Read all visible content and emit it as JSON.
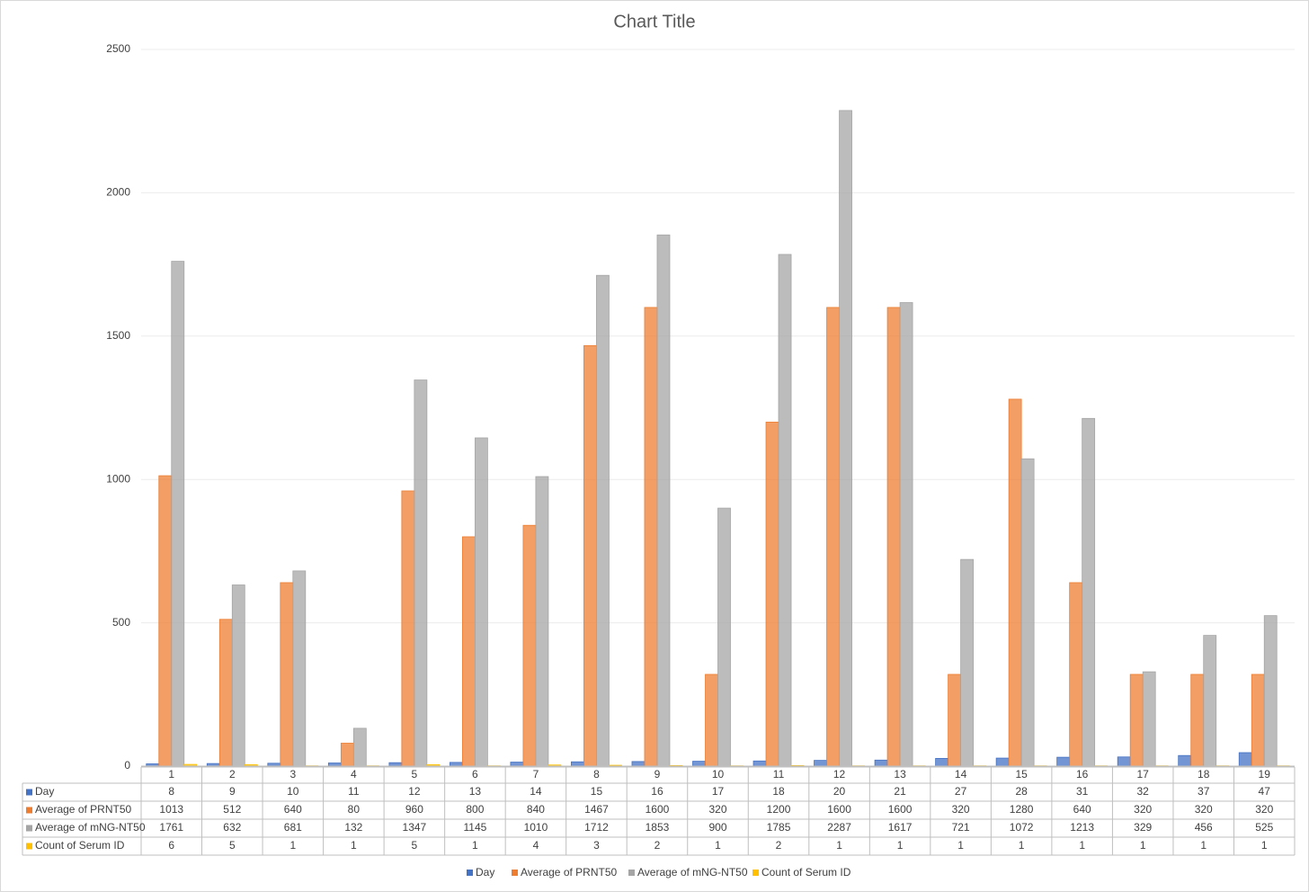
{
  "chart_data": {
    "type": "bar",
    "title": "Chart Title",
    "categories": [
      "1",
      "2",
      "3",
      "4",
      "5",
      "6",
      "7",
      "8",
      "9",
      "10",
      "11",
      "12",
      "13",
      "14",
      "15",
      "16",
      "17",
      "18",
      "19"
    ],
    "series": [
      {
        "name": "Day",
        "color": "#4472c4",
        "values": [
          8,
          9,
          10,
          11,
          12,
          13,
          14,
          15,
          16,
          17,
          18,
          20,
          21,
          27,
          28,
          31,
          32,
          37,
          47
        ]
      },
      {
        "name": "Average of PRNT50",
        "color": "#ed7d31",
        "values": [
          1013,
          512,
          640,
          80,
          960,
          800,
          840,
          1467,
          1600,
          320,
          1200,
          1600,
          1600,
          320,
          1280,
          640,
          320,
          320,
          320
        ]
      },
      {
        "name": "Average of mNG-NT50",
        "color": "#a5a5a5",
        "values": [
          1761,
          632,
          681,
          132,
          1347,
          1145,
          1010,
          1712,
          1853,
          900,
          1785,
          2287,
          1617,
          721,
          1072,
          1213,
          329,
          456,
          525
        ]
      },
      {
        "name": "Count of Serum ID",
        "color": "#ffc000",
        "values": [
          6,
          5,
          1,
          1,
          5,
          1,
          4,
          3,
          2,
          1,
          2,
          1,
          1,
          1,
          1,
          1,
          1,
          1,
          1
        ]
      }
    ],
    "ylim": [
      0,
      2500
    ],
    "yticks": [
      0,
      500,
      1000,
      1500,
      2000,
      2500
    ],
    "grid": true,
    "legend": "bottom",
    "data_table": true
  }
}
